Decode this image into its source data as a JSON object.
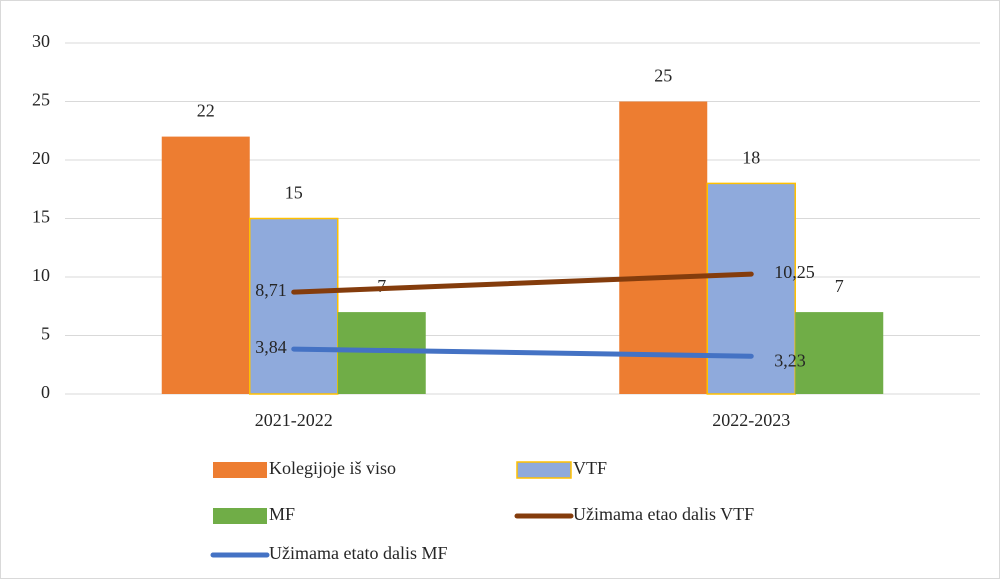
{
  "chart_data": {
    "type": "bar",
    "categories": [
      "2021-2022",
      "2022-2023"
    ],
    "series": [
      {
        "name": "Kolegijoje iš viso",
        "type": "bar",
        "color": "#ed7d31",
        "values": [
          22,
          25
        ]
      },
      {
        "name": "VTF",
        "type": "bar",
        "color": "#8faadc",
        "edgecolor": "#ffc000",
        "values": [
          15,
          18
        ]
      },
      {
        "name": "MF",
        "type": "bar",
        "color": "#70ad47",
        "values": [
          7,
          7
        ]
      },
      {
        "name": "Užimama etao dalis VTF",
        "type": "line",
        "color": "#843c0c",
        "values": [
          8.71,
          10.25
        ],
        "value_labels": [
          "8,71",
          "10,25"
        ]
      },
      {
        "name": "Užimama etato dalis MF",
        "type": "line",
        "color": "#4472c4",
        "values": [
          3.84,
          3.23
        ],
        "value_labels": [
          "3,84",
          "3,23"
        ]
      }
    ],
    "ylim": [
      0,
      30
    ],
    "yticks": [
      0,
      5,
      10,
      15,
      20,
      25,
      30
    ],
    "grid": true
  }
}
